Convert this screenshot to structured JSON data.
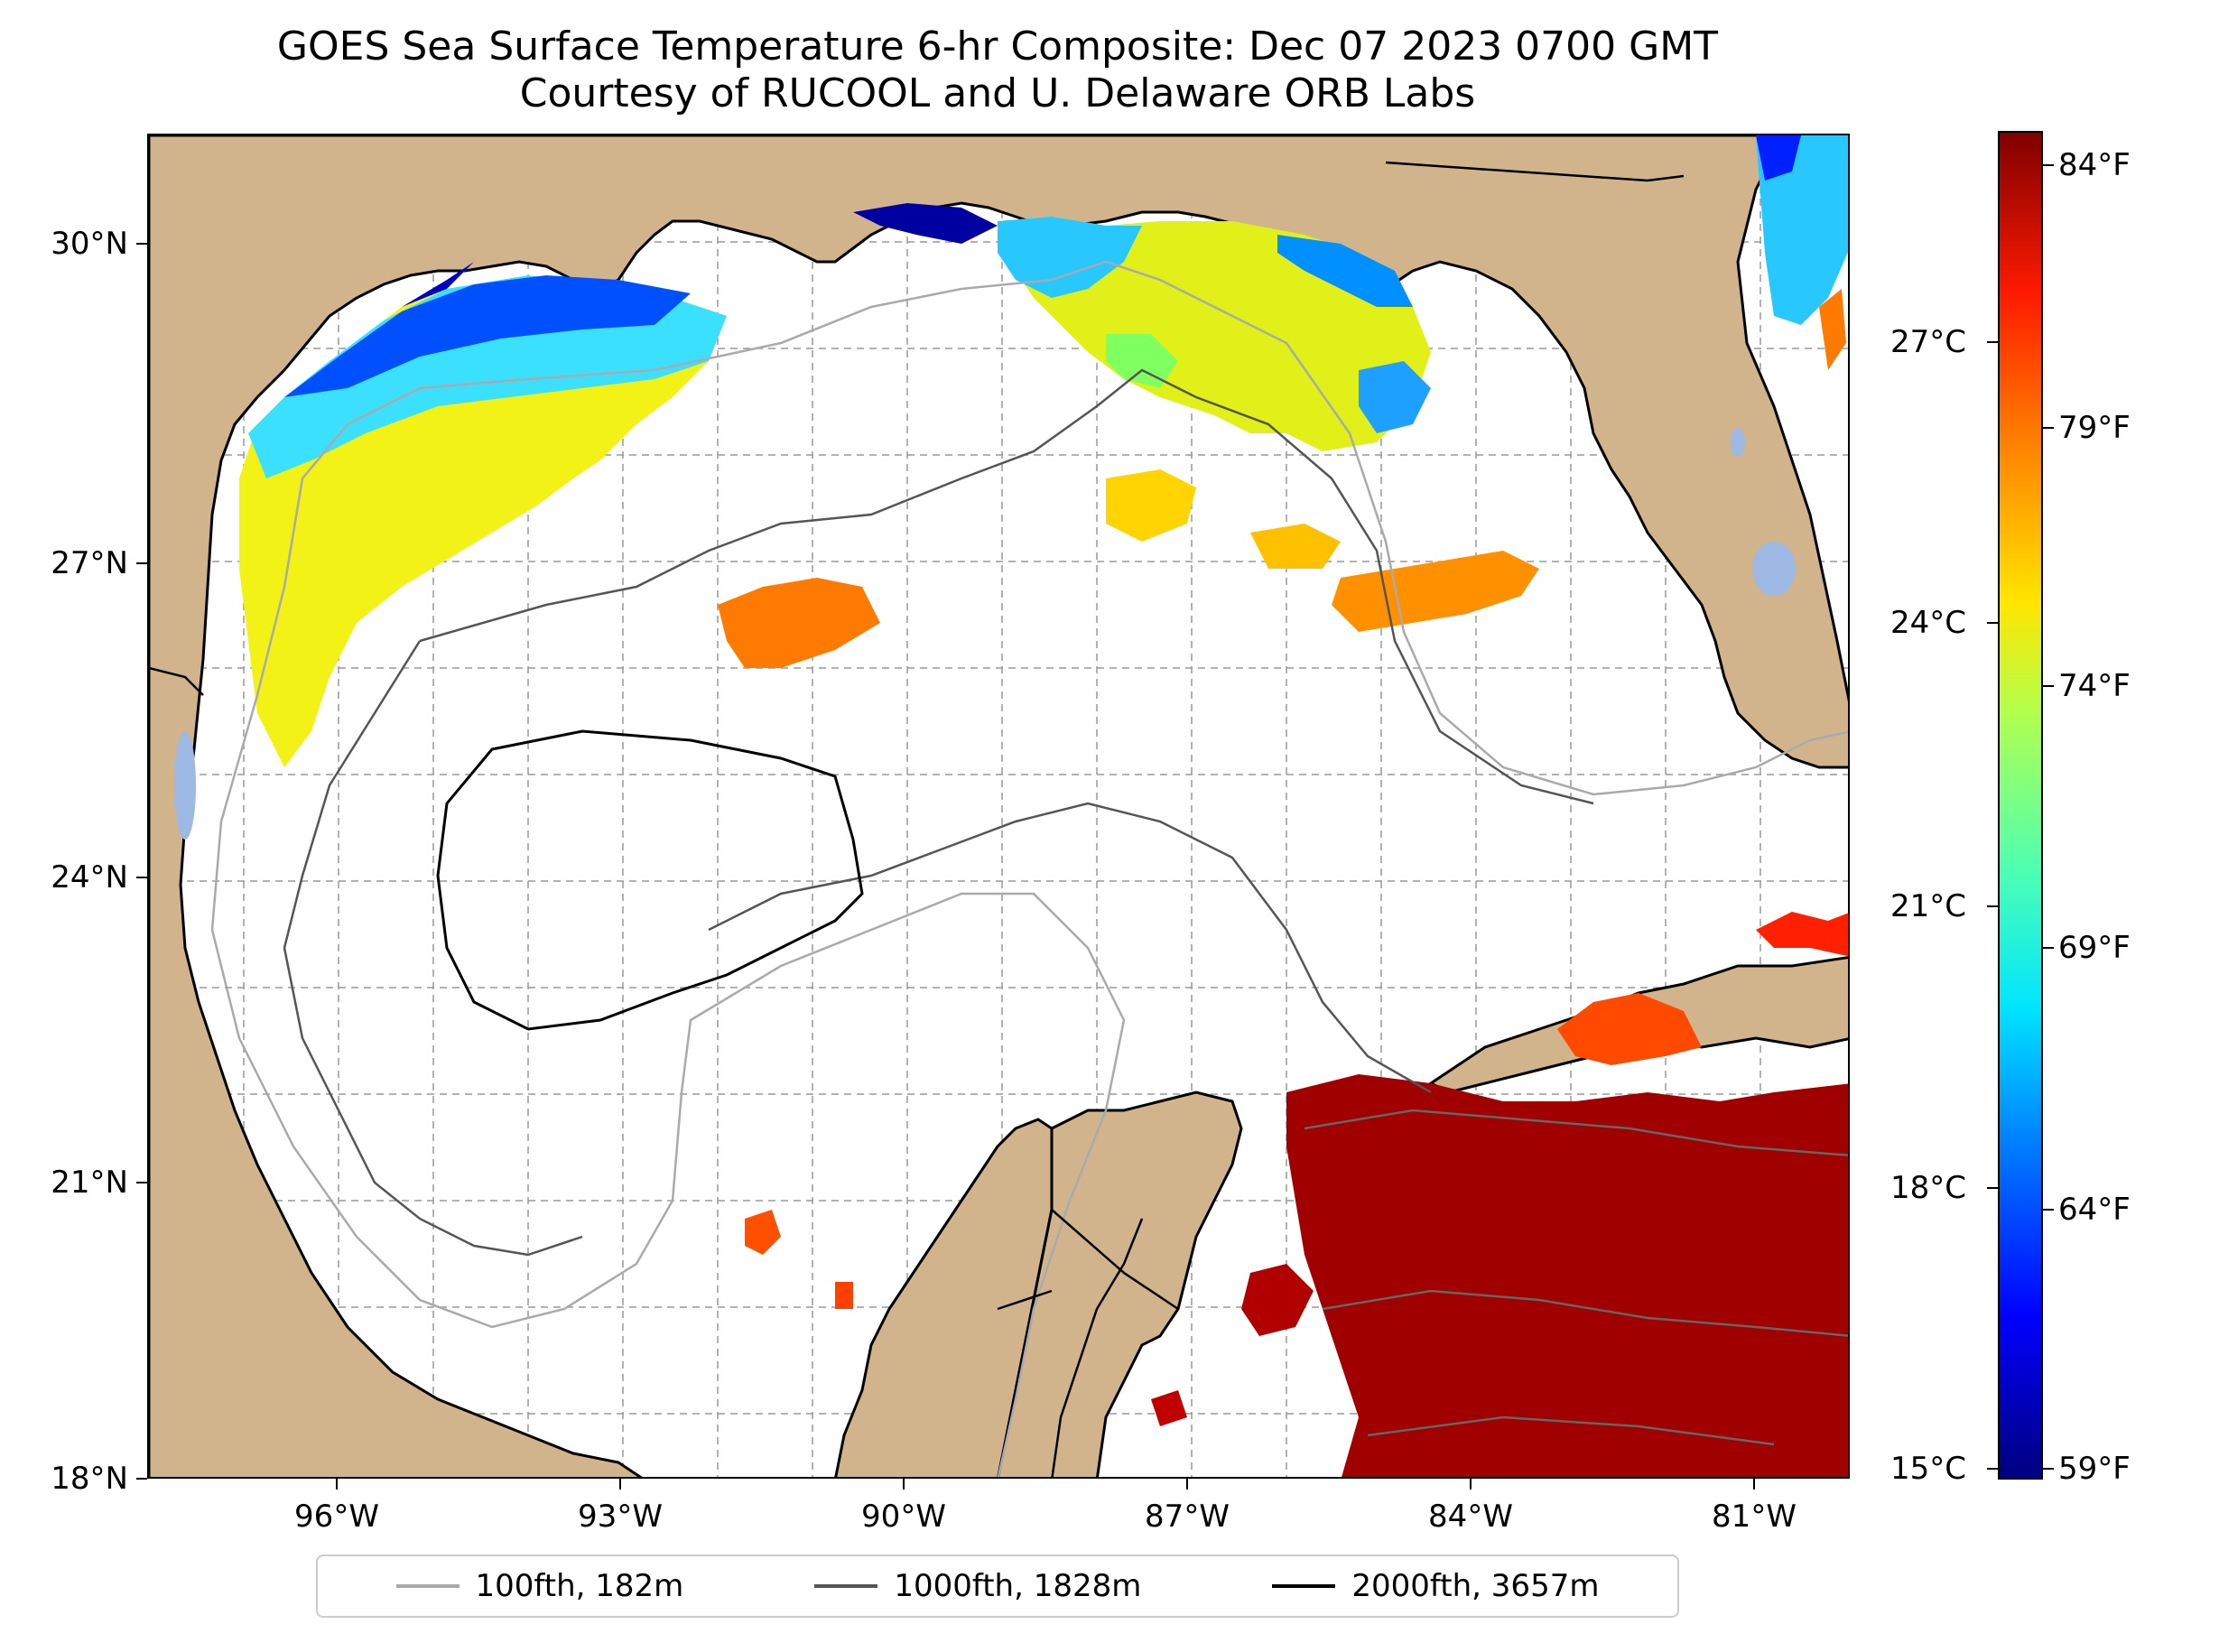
{
  "title_line1": "GOES Sea Surface Temperature 6-hr Composite: Dec 07 2023 0700 GMT",
  "title_line2": "Courtesy of RUCOOL and U. Delaware ORB Labs",
  "lat_ticks": [
    "30°N",
    "27°N",
    "24°N",
    "21°N",
    "18°N"
  ],
  "lon_ticks": [
    "96°W",
    "93°W",
    "90°W",
    "87°W",
    "84°W",
    "81°W"
  ],
  "colorbar": {
    "fahrenheit_ticks": [
      "84°F",
      "79°F",
      "74°F",
      "69°F",
      "64°F",
      "59°F"
    ],
    "celsius_ticks": [
      "27°C",
      "24°C",
      "21°C",
      "18°C",
      "15°C"
    ],
    "colormap": "jet",
    "range_f": [
      58.5,
      84.5
    ]
  },
  "legend": [
    {
      "label": "100fth, 182m",
      "color": "#aaaaaa"
    },
    {
      "label": "1000fth, 1828m",
      "color": "#555555"
    },
    {
      "label": "2000fth, 3657m",
      "color": "#000000"
    }
  ],
  "colors": {
    "land": "#d2b48c",
    "lakes": "#9db9e4",
    "ocean": "#ffffff"
  },
  "map_extent": {
    "lon": [
      -98,
      -80
    ],
    "lat": [
      18,
      31
    ]
  }
}
